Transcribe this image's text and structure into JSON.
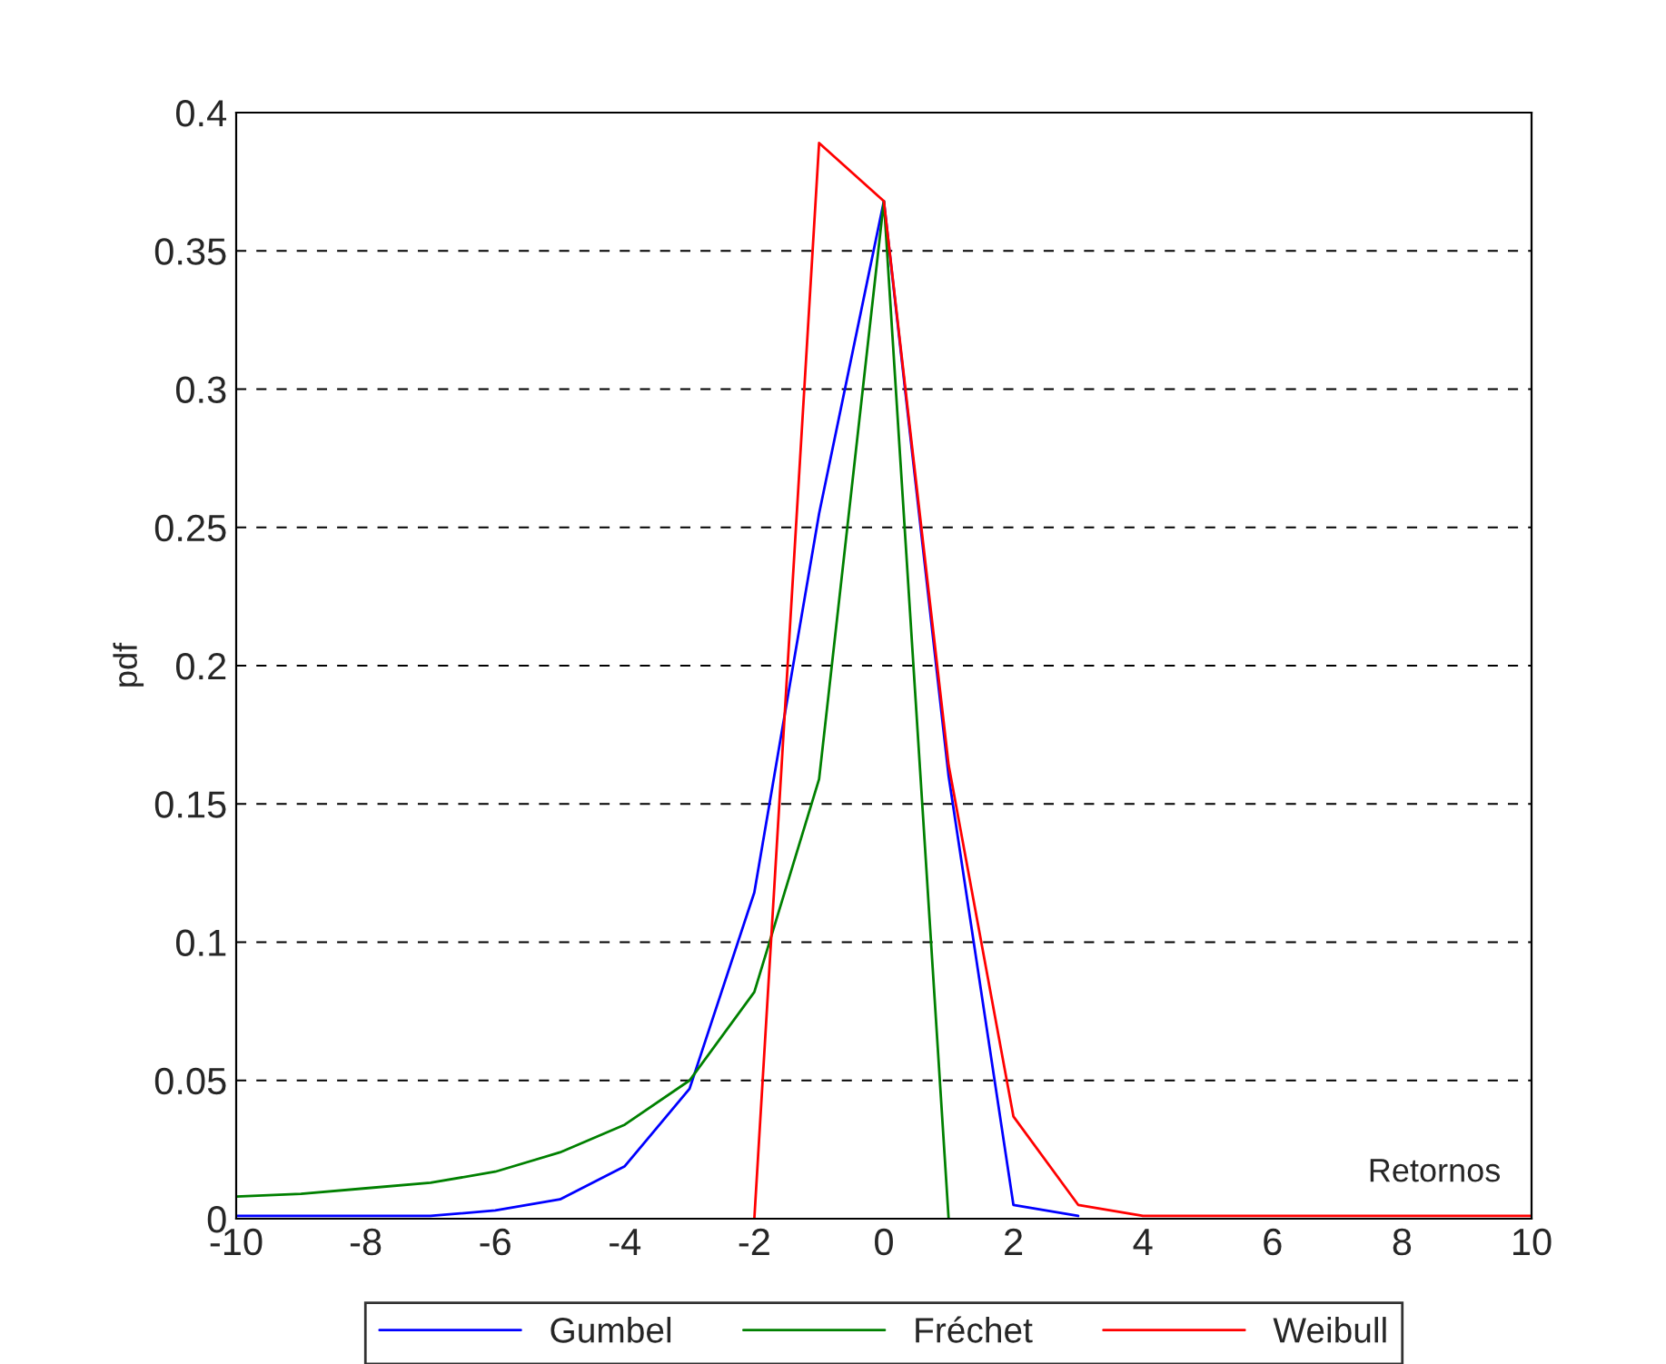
{
  "chart_data": {
    "type": "line",
    "xlabel": "Retornos",
    "ylabel": "pdf",
    "x": [
      -10,
      -9,
      -8,
      -7,
      -6,
      -5,
      -4,
      -3,
      -2,
      -1,
      0,
      1,
      2,
      3,
      4,
      5,
      6,
      7,
      8,
      9,
      10
    ],
    "series": [
      {
        "name": "Gumbel",
        "color": "#0000ff",
        "values": [
          0.001,
          0.001,
          0.001,
          0.001,
          0.003,
          0.007,
          0.019,
          0.047,
          0.118,
          0.255,
          0.368,
          0.16,
          0.005,
          0.001,
          null,
          null,
          null,
          null,
          null,
          null,
          null
        ]
      },
      {
        "name": "Fréchet",
        "color": "#008000",
        "values": [
          0.008,
          0.009,
          0.011,
          0.013,
          0.017,
          0.024,
          0.034,
          0.05,
          0.082,
          0.159,
          0.368,
          0,
          null,
          null,
          null,
          null,
          null,
          null,
          null,
          null,
          null
        ]
      },
      {
        "name": "Weibull",
        "color": "#ff0000",
        "values": [
          null,
          null,
          null,
          null,
          null,
          null,
          null,
          null,
          0,
          0.389,
          0.368,
          0.164,
          0.037,
          0.005,
          0.001,
          0.001,
          0.001,
          0.001,
          0.001,
          0.001,
          0.001
        ]
      }
    ],
    "xlim": [
      -10,
      10
    ],
    "xticks": [
      -10,
      -8,
      -6,
      -4,
      -2,
      0,
      2,
      4,
      6,
      8,
      10
    ],
    "ylim": [
      0,
      0.4
    ],
    "yticks": [
      0,
      0.05,
      0.1,
      0.15,
      0.2,
      0.25,
      0.3,
      0.35,
      0.4
    ],
    "grid": "y",
    "legend": "bottom",
    "line_style": "solid",
    "marker": "none"
  }
}
